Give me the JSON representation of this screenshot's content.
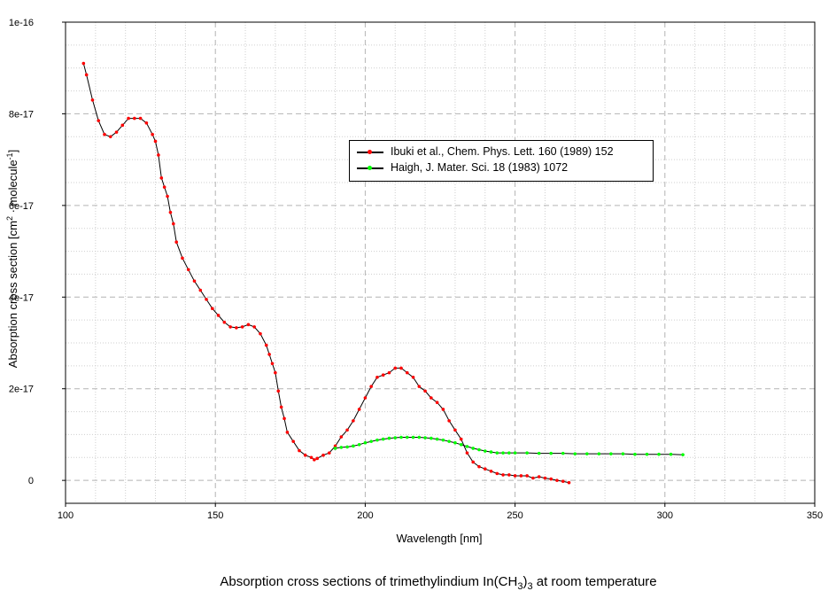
{
  "chart_data": {
    "type": "line",
    "title": "",
    "caption": "Absorption cross sections of trimethylindium In(CH",
    "caption_sub": "3",
    "caption_sub2": "3",
    "caption_tail": " at room temperature",
    "xlabel": "Wavelength [nm]",
    "ylabel": "Absorption cross section [cm",
    "ylabel_sup1": "2",
    "ylabel_mid": " · molecule",
    "ylabel_sup2": "-1",
    "ylabel_end": "]",
    "xlim": [
      100,
      350
    ],
    "ylim": [
      -5e-18,
      1e-16
    ],
    "x_ticks": [
      100,
      150,
      200,
      250,
      300,
      350
    ],
    "x_tick_labels": [
      "100",
      "150",
      "200",
      "250",
      "300",
      "350"
    ],
    "y_ticks": [
      0,
      2e-17,
      4e-17,
      6e-17,
      8e-17,
      1e-16
    ],
    "y_tick_labels": [
      "0",
      "2e-17",
      "4e-17",
      "6e-17",
      "8e-17",
      "1e-16"
    ],
    "grid": true,
    "legend_position": "upper-center",
    "series": [
      {
        "name": "Ibuki et al., Chem. Phys. Lett. 160 (1989) 152",
        "line_color": "#000000",
        "marker_color": "#ff0000",
        "x": [
          106,
          107,
          109,
          111,
          113,
          115,
          117,
          119,
          121,
          123,
          125,
          127,
          129,
          130,
          131,
          132,
          133,
          134,
          135,
          136,
          137,
          139,
          141,
          143,
          145,
          147,
          149,
          151,
          153,
          155,
          157,
          159,
          161,
          163,
          165,
          167,
          168,
          169,
          170,
          171,
          172,
          173,
          174,
          176,
          178,
          180,
          182,
          183,
          184,
          186,
          188,
          190,
          192,
          194,
          196,
          198,
          200,
          202,
          204,
          206,
          208,
          210,
          212,
          214,
          216,
          218,
          220,
          222,
          224,
          226,
          228,
          230,
          232,
          234,
          236,
          238,
          240,
          242,
          244,
          246,
          248,
          250,
          252,
          254,
          256,
          258,
          260,
          262,
          264,
          266,
          268
        ],
        "y": [
          9.1e-17,
          8.85e-17,
          8.3e-17,
          7.85e-17,
          7.55e-17,
          7.5e-17,
          7.6e-17,
          7.75e-17,
          7.9e-17,
          7.9e-17,
          7.9e-17,
          7.8e-17,
          7.55e-17,
          7.4e-17,
          7.1e-17,
          6.6e-17,
          6.4e-17,
          6.2e-17,
          5.85e-17,
          5.6e-17,
          5.2e-17,
          4.85e-17,
          4.6e-17,
          4.35e-17,
          4.15e-17,
          3.95e-17,
          3.75e-17,
          3.6e-17,
          3.45e-17,
          3.35e-17,
          3.33e-17,
          3.35e-17,
          3.4e-17,
          3.35e-17,
          3.2e-17,
          2.95e-17,
          2.75e-17,
          2.55e-17,
          2.35e-17,
          1.95e-17,
          1.6e-17,
          1.35e-17,
          1.05e-17,
          8.5e-18,
          6.5e-18,
          5.5e-18,
          5e-18,
          4.5e-18,
          4.8e-18,
          5.5e-18,
          6e-18,
          7.5e-18,
          9.5e-18,
          1.1e-17,
          1.3e-17,
          1.55e-17,
          1.8e-17,
          2.05e-17,
          2.25e-17,
          2.3e-17,
          2.35e-17,
          2.45e-17,
          2.45e-17,
          2.35e-17,
          2.25e-17,
          2.05e-17,
          1.95e-17,
          1.8e-17,
          1.7e-17,
          1.55e-17,
          1.3e-17,
          1.1e-17,
          9e-18,
          6e-18,
          4e-18,
          3e-18,
          2.5e-18,
          2e-18,
          1.5e-18,
          1.2e-18,
          1.2e-18,
          1e-18,
          1e-18,
          1e-18,
          5e-19,
          8e-19,
          5e-19,
          3e-19,
          0.0,
          -2e-19,
          -5e-19
        ]
      },
      {
        "name": "Haigh, J. Mater. Sci. 18 (1983) 1072",
        "line_color": "#000000",
        "marker_color": "#00ff00",
        "x": [
          190,
          192,
          194,
          196,
          198,
          200,
          202,
          204,
          206,
          208,
          210,
          212,
          214,
          216,
          218,
          220,
          222,
          224,
          226,
          228,
          230,
          232,
          234,
          236,
          238,
          240,
          242,
          244,
          246,
          248,
          250,
          254,
          258,
          262,
          266,
          270,
          274,
          278,
          282,
          286,
          290,
          294,
          298,
          302,
          306
        ],
        "y": [
          7e-18,
          7.2e-18,
          7.3e-18,
          7.5e-18,
          7.8e-18,
          8.2e-18,
          8.5e-18,
          8.8e-18,
          9e-18,
          9.2e-18,
          9.3e-18,
          9.4e-18,
          9.4e-18,
          9.4e-18,
          9.4e-18,
          9.3e-18,
          9.2e-18,
          9e-18,
          8.8e-18,
          8.5e-18,
          8.2e-18,
          7.8e-18,
          7.4e-18,
          7e-18,
          6.7e-18,
          6.4e-18,
          6.2e-18,
          6e-18,
          6e-18,
          6e-18,
          6e-18,
          6e-18,
          5.9e-18,
          5.9e-18,
          5.9e-18,
          5.8e-18,
          5.8e-18,
          5.8e-18,
          5.8e-18,
          5.8e-18,
          5.7e-18,
          5.7e-18,
          5.7e-18,
          5.7e-18,
          5.6e-18
        ]
      }
    ]
  }
}
